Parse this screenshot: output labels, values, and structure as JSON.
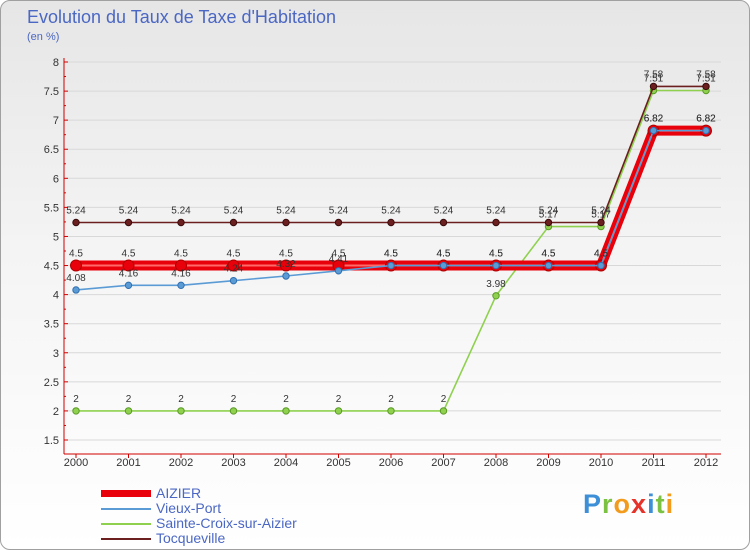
{
  "chart_data": {
    "type": "line",
    "title": "Evolution du Taux de Taxe d'Habitation",
    "ylabel": "(en %)",
    "ylim": [
      1.5,
      8
    ],
    "yticks": [
      "1.5",
      "2",
      "2.5",
      "3",
      "3.5",
      "4",
      "4.5",
      "5",
      "5.5",
      "6",
      "6.5",
      "7",
      "7.5",
      "8"
    ],
    "categories": [
      "2000",
      "2001",
      "2002",
      "2003",
      "2004",
      "2005",
      "2006",
      "2007",
      "2008",
      "2009",
      "2010",
      "2011",
      "2012"
    ],
    "series": [
      {
        "name": "AIZIER",
        "color": "#e8000b",
        "values": [
          4.5,
          4.5,
          4.5,
          4.5,
          4.5,
          4.5,
          4.5,
          4.5,
          4.5,
          4.5,
          4.5,
          6.82,
          6.82
        ],
        "labels": [
          "4.5",
          "4.5",
          "4.5",
          "4.5",
          "4.5",
          "4.5",
          "4.5",
          "4.5",
          "4.5",
          "4.5",
          "4.5",
          "6.82",
          "6.82"
        ]
      },
      {
        "name": "Vieux-Port",
        "color": "#5b9bd5",
        "values": [
          4.08,
          4.16,
          4.16,
          4.24,
          4.32,
          4.41,
          4.5,
          4.5,
          4.5,
          4.5,
          4.5,
          6.82,
          6.82
        ],
        "labels": [
          "4.08",
          "4.16",
          "4.16",
          "4.24",
          "4.32",
          "4.41",
          "4.5",
          "4.5",
          "4.5",
          "4.5",
          "4.5",
          "6.82",
          "6.82"
        ]
      },
      {
        "name": "Sainte-Croix-sur-Aizier",
        "color": "#8fd14f",
        "values": [
          2,
          2,
          2,
          2,
          2,
          2,
          2,
          2,
          3.98,
          5.17,
          5.17,
          7.51,
          7.51
        ],
        "labels": [
          "2",
          "2",
          "2",
          "2",
          "2",
          "2",
          "2",
          "2",
          "3.98",
          "5.17",
          "5.17",
          "7.51",
          "7.51"
        ]
      },
      {
        "name": "Tocqueville",
        "color": "#6b1f1f",
        "values": [
          5.24,
          5.24,
          5.24,
          5.24,
          5.24,
          5.24,
          5.24,
          5.24,
          5.24,
          5.24,
          5.24,
          7.58,
          7.58
        ],
        "labels": [
          "5.24",
          "5.24",
          "5.24",
          "5.24",
          "5.24",
          "5.24",
          "5.24",
          "5.24",
          "5.24",
          "5.24",
          "5.24",
          "7.58",
          "7.58"
        ]
      }
    ]
  },
  "logo": {
    "letters": [
      "P",
      "r",
      "o",
      "x",
      "i",
      "t",
      "i"
    ],
    "colors": [
      "#3d8fd8",
      "#7cc242",
      "#f29b1c",
      "#e6332a",
      "#3d8fd8",
      "#7cc242",
      "#f29b1c"
    ]
  }
}
